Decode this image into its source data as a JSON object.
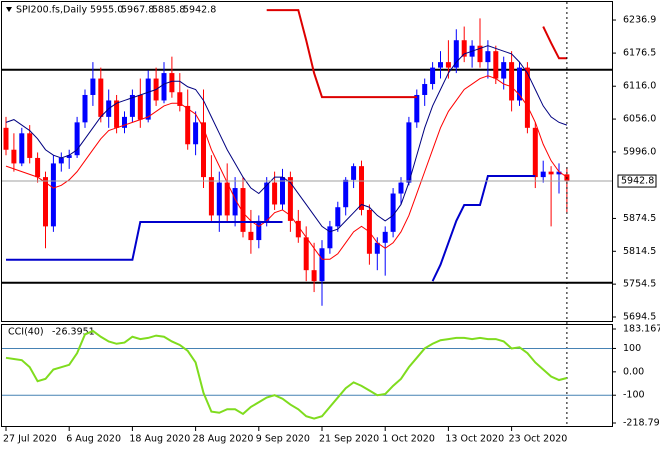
{
  "chart_data": {
    "type": "candlestick",
    "title": "SPI200.fs,Daily",
    "header_labels": [
      "5955.0",
      "5967.8",
      "5885.8",
      "5942.8"
    ],
    "categories": [
      "27 Jul 2020",
      null,
      null,
      null,
      null,
      null,
      null,
      null,
      "6 Aug 2020",
      null,
      null,
      null,
      null,
      null,
      null,
      null,
      "18 Aug 2020",
      null,
      null,
      null,
      null,
      null,
      null,
      null,
      "28 Aug 2020",
      null,
      null,
      null,
      null,
      null,
      null,
      null,
      "9 Sep 2020",
      null,
      null,
      null,
      null,
      null,
      null,
      null,
      "21 Sep 2020",
      null,
      null,
      null,
      null,
      null,
      null,
      null,
      "1 Oct 2020",
      null,
      null,
      null,
      null,
      null,
      null,
      null,
      "13 Oct 2020",
      null,
      null,
      null,
      null,
      null,
      null,
      null,
      "23 Oct 2020",
      null,
      null,
      null,
      null,
      null,
      null,
      null
    ],
    "ohlc": [
      [
        6040,
        6060,
        5990,
        6000
      ],
      [
        6000,
        6030,
        5960,
        5975
      ],
      [
        5975,
        6040,
        5970,
        6030
      ],
      [
        6030,
        6045,
        5975,
        5985
      ],
      [
        5985,
        5995,
        5940,
        5950
      ],
      [
        5950,
        5960,
        5820,
        5860
      ],
      [
        5860,
        5990,
        5850,
        5975
      ],
      [
        5975,
        5995,
        5960,
        5985
      ],
      [
        5985,
        6000,
        5965,
        5990
      ],
      [
        5990,
        6060,
        5985,
        6050
      ],
      [
        6050,
        6110,
        6040,
        6100
      ],
      [
        6100,
        6160,
        6080,
        6130
      ],
      [
        6130,
        6150,
        6050,
        6060
      ],
      [
        6060,
        6110,
        6040,
        6090
      ],
      [
        6090,
        6100,
        6030,
        6040
      ],
      [
        6040,
        6070,
        6030,
        6060
      ],
      [
        6060,
        6110,
        6050,
        6100
      ],
      [
        6100,
        6130,
        6040,
        6055
      ],
      [
        6055,
        6145,
        6050,
        6130
      ],
      [
        6130,
        6150,
        6080,
        6090
      ],
      [
        6090,
        6160,
        6085,
        6140
      ],
      [
        6140,
        6170,
        6095,
        6105
      ],
      [
        6105,
        6140,
        6070,
        6080
      ],
      [
        6080,
        6110,
        6000,
        6010
      ],
      [
        6010,
        6070,
        5990,
        6050
      ],
      [
        6050,
        6110,
        5930,
        5950
      ],
      [
        5950,
        5990,
        5870,
        5880
      ],
      [
        5880,
        5960,
        5850,
        5940
      ],
      [
        5940,
        5975,
        5870,
        5880
      ],
      [
        5880,
        5950,
        5860,
        5930
      ],
      [
        5930,
        5950,
        5840,
        5850
      ],
      [
        5850,
        5890,
        5810,
        5835
      ],
      [
        5835,
        5880,
        5820,
        5870
      ],
      [
        5870,
        5950,
        5860,
        5940
      ],
      [
        5940,
        5960,
        5890,
        5900
      ],
      [
        5900,
        5965,
        5890,
        5950
      ],
      [
        5950,
        5960,
        5850,
        5870
      ],
      [
        5870,
        5890,
        5830,
        5840
      ],
      [
        5840,
        5860,
        5760,
        5780
      ],
      [
        5780,
        5830,
        5740,
        5760
      ],
      [
        5760,
        5835,
        5715,
        5820
      ],
      [
        5820,
        5870,
        5810,
        5860
      ],
      [
        5860,
        5905,
        5850,
        5895
      ],
      [
        5895,
        5950,
        5880,
        5945
      ],
      [
        5945,
        5975,
        5930,
        5970
      ],
      [
        5970,
        5980,
        5880,
        5890
      ],
      [
        5890,
        5900,
        5790,
        5810
      ],
      [
        5810,
        5840,
        5780,
        5830
      ],
      [
        5830,
        5860,
        5770,
        5850
      ],
      [
        5850,
        5930,
        5840,
        5920
      ],
      [
        5920,
        5950,
        5900,
        5940
      ],
      [
        5940,
        6060,
        5935,
        6050
      ],
      [
        6050,
        6110,
        6040,
        6100
      ],
      [
        6100,
        6130,
        6080,
        6120
      ],
      [
        6120,
        6160,
        6110,
        6150
      ],
      [
        6150,
        6180,
        6130,
        6160
      ],
      [
        6160,
        6200,
        6130,
        6150
      ],
      [
        6150,
        6220,
        6140,
        6200
      ],
      [
        6200,
        6225,
        6160,
        6170
      ],
      [
        6170,
        6200,
        6150,
        6190
      ],
      [
        6190,
        6240,
        6150,
        6160
      ],
      [
        6160,
        6200,
        6130,
        6180
      ],
      [
        6180,
        6190,
        6120,
        6130
      ],
      [
        6130,
        6170,
        6110,
        6160
      ],
      [
        6160,
        6180,
        6070,
        6090
      ],
      [
        6090,
        6160,
        6080,
        6150
      ],
      [
        6150,
        6160,
        6030,
        6040
      ],
      [
        6040,
        6050,
        5930,
        5950
      ],
      [
        5950,
        5980,
        5940,
        5960
      ],
      [
        5960,
        5970,
        5860,
        5955
      ],
      [
        5955,
        5975,
        5920,
        5960
      ],
      [
        5955.0,
        5967.8,
        5885.8,
        5942.8
      ]
    ],
    "up_color": "#0000ff",
    "down_color": "#ff0000",
    "ylim": [
      5689,
      6268
    ],
    "yticks": [
      {
        "value": 6236.9,
        "label": "6236.9"
      },
      {
        "value": 6176.5,
        "label": "6176.5"
      },
      {
        "value": 6116,
        "label": "6116.0"
      },
      {
        "value": 6056,
        "label": "6056.0"
      },
      {
        "value": 5996,
        "label": "5996.0"
      },
      {
        "value": 5874.5,
        "label": "5874.5"
      },
      {
        "value": 5814.5,
        "label": "5814.5"
      },
      {
        "value": 5754.5,
        "label": "5754.5"
      },
      {
        "value": 5694.5,
        "label": "5694.5"
      }
    ],
    "series": [
      {
        "color": "#000080",
        "width": 1,
        "values": [
          6050,
          6055,
          6045,
          6035,
          6020,
          6000,
          5990,
          5985,
          5990,
          6000,
          6020,
          6040,
          6060,
          6075,
          6085,
          6090,
          6095,
          6100,
          6105,
          6110,
          6120,
          6125,
          6125,
          6115,
          6110,
          6090,
          6060,
          6030,
          6000,
          5975,
          5950,
          5930,
          5920,
          5935,
          5950,
          5950,
          5940,
          5920,
          5900,
          5880,
          5860,
          5850,
          5855,
          5870,
          5885,
          5900,
          5895,
          5880,
          5870,
          5880,
          5900,
          5940,
          5990,
          6040,
          6080,
          6110,
          6140,
          6160,
          6175,
          6180,
          6185,
          6190,
          6185,
          6180,
          6175,
          6160,
          6140,
          6110,
          6080,
          6060,
          6050,
          6045
        ]
      },
      {
        "color": "#ff0000",
        "width": 1,
        "values": [
          5970,
          5965,
          5960,
          5955,
          5950,
          5940,
          5930,
          5935,
          5945,
          5960,
          5980,
          6000,
          6020,
          6035,
          6040,
          6045,
          6050,
          6055,
          6060,
          6070,
          6080,
          6085,
          6085,
          6075,
          6065,
          6040,
          6000,
          5970,
          5940,
          5910,
          5885,
          5870,
          5860,
          5870,
          5885,
          5890,
          5880,
          5860,
          5840,
          5820,
          5800,
          5800,
          5810,
          5830,
          5850,
          5860,
          5850,
          5830,
          5820,
          5830,
          5850,
          5880,
          5920,
          5960,
          6000,
          6040,
          6070,
          6090,
          6110,
          6120,
          6130,
          6135,
          6130,
          6120,
          6115,
          6100,
          6080,
          6050,
          6010,
          5980,
          5960,
          5950
        ]
      },
      {
        "color": "#0000cc",
        "width": 2,
        "values": [
          5799,
          5799,
          5799,
          5799,
          5799,
          5799,
          5799,
          5799,
          5799,
          5799,
          5799,
          5799,
          5799,
          5799,
          5799,
          5799,
          5799,
          5868,
          5868,
          5868,
          5868,
          5868,
          5868,
          5868,
          5868,
          5868,
          5868,
          5868,
          5868,
          5868,
          5868,
          5868,
          5868,
          5868,
          5868,
          5868,
          null,
          null,
          null,
          null,
          null,
          null,
          null,
          null,
          null,
          null,
          null,
          null,
          null,
          null,
          null,
          null,
          null,
          null,
          5760,
          5790,
          5830,
          5870,
          5899,
          5899,
          5899,
          5952,
          5952,
          5952,
          5952,
          5952,
          5952,
          5952,
          null,
          null,
          null,
          null
        ]
      },
      {
        "color": "#dd0000",
        "width": 2,
        "values": [
          null,
          null,
          null,
          null,
          null,
          null,
          null,
          null,
          null,
          null,
          null,
          null,
          null,
          null,
          null,
          null,
          null,
          null,
          null,
          null,
          null,
          null,
          null,
          null,
          null,
          null,
          null,
          null,
          null,
          null,
          null,
          null,
          null,
          6255,
          6255,
          6255,
          6255,
          6255,
          6200,
          6140,
          6096,
          6096,
          6096,
          6096,
          6096,
          6096,
          6096,
          6096,
          6096,
          6096,
          6096,
          6096,
          6096,
          null,
          null,
          null,
          null,
          null,
          null,
          null,
          null,
          null,
          null,
          null,
          null,
          null,
          null,
          null,
          6225,
          6195,
          6167,
          6167
        ]
      }
    ],
    "hlines": [
      {
        "value": 6146,
        "color": "#000000"
      },
      {
        "value": 5757,
        "color": "#000000"
      }
    ],
    "cci": {
      "title": "CCI(40)",
      "color": "#7fdc1e",
      "values": [
        60,
        55,
        50,
        20,
        -40,
        -30,
        10,
        20,
        30,
        80,
        160,
        175,
        150,
        130,
        120,
        125,
        150,
        140,
        145,
        155,
        150,
        130,
        115,
        90,
        40,
        -90,
        -170,
        -175,
        -160,
        -160,
        -180,
        -150,
        -130,
        -110,
        -100,
        -115,
        -140,
        -160,
        -190,
        -200,
        -190,
        -150,
        -110,
        -70,
        -45,
        -60,
        -80,
        -100,
        -95,
        -60,
        -30,
        20,
        60,
        100,
        120,
        135,
        140,
        145,
        145,
        140,
        145,
        140,
        140,
        130,
        100,
        105,
        80,
        40,
        10,
        -20,
        -35,
        -26.3951
      ],
      "ylim": [
        -218.799,
        183.1673
      ],
      "yticks": [
        183.1673,
        100,
        {
          "value": 0,
          "label": "0.00"
        },
        -100,
        -218.799
      ],
      "levels": [
        100,
        -100
      ]
    }
  }
}
